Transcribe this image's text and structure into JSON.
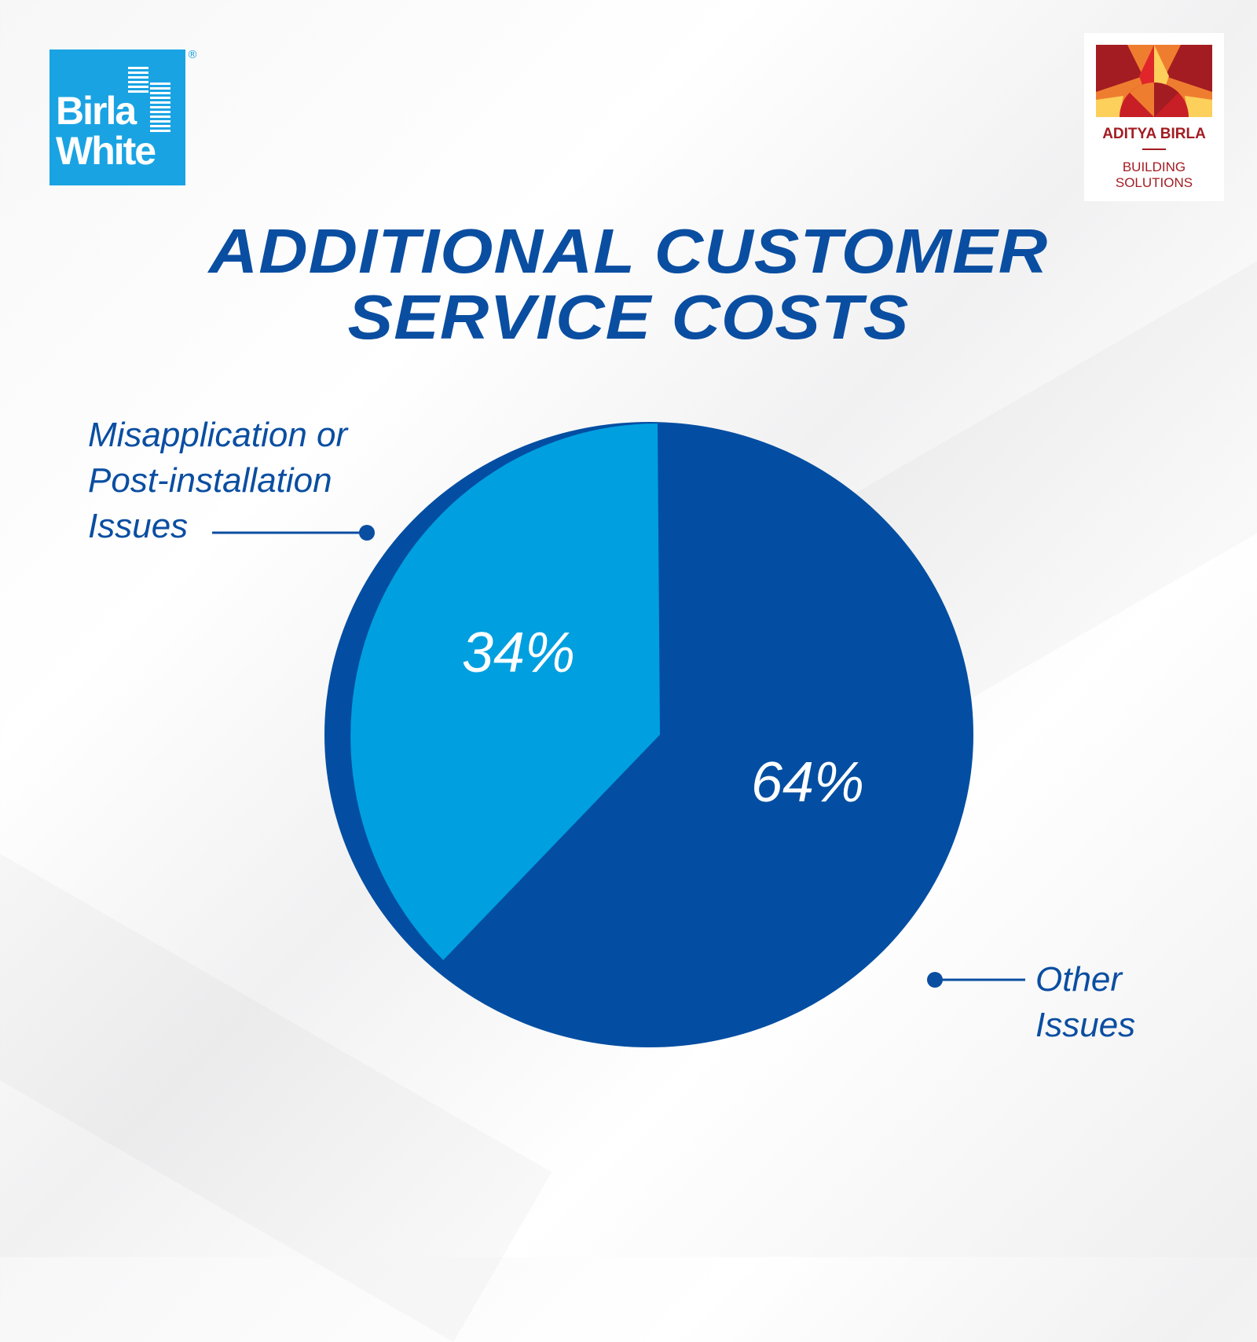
{
  "brand": {
    "left_logo_text": "Birla White",
    "left_logo_mark": "®",
    "right_logo_text": "ADITYA BIRLA",
    "right_logo_subtext": "BUILDING SOLUTIONS",
    "colors": {
      "birla_white_blue": "#1aa3e3",
      "aditya_red": "#a31c22",
      "aditya_orange": "#ef7d30",
      "aditya_yellow": "#fcd05a"
    }
  },
  "chart_data": {
    "type": "pie",
    "title": [
      "ADDITIONAL CUSTOMER",
      "SERVICE COSTS"
    ],
    "slices": [
      {
        "label": [
          "Misapplication or",
          "Post-installation",
          "Issues"
        ],
        "value": 34,
        "display": "34%",
        "color": "#009fe0"
      },
      {
        "label": [
          "Other",
          "Issues"
        ],
        "value": 64,
        "display": "64%",
        "color": "#034ea2"
      }
    ],
    "legend": "none (callout labels)"
  }
}
